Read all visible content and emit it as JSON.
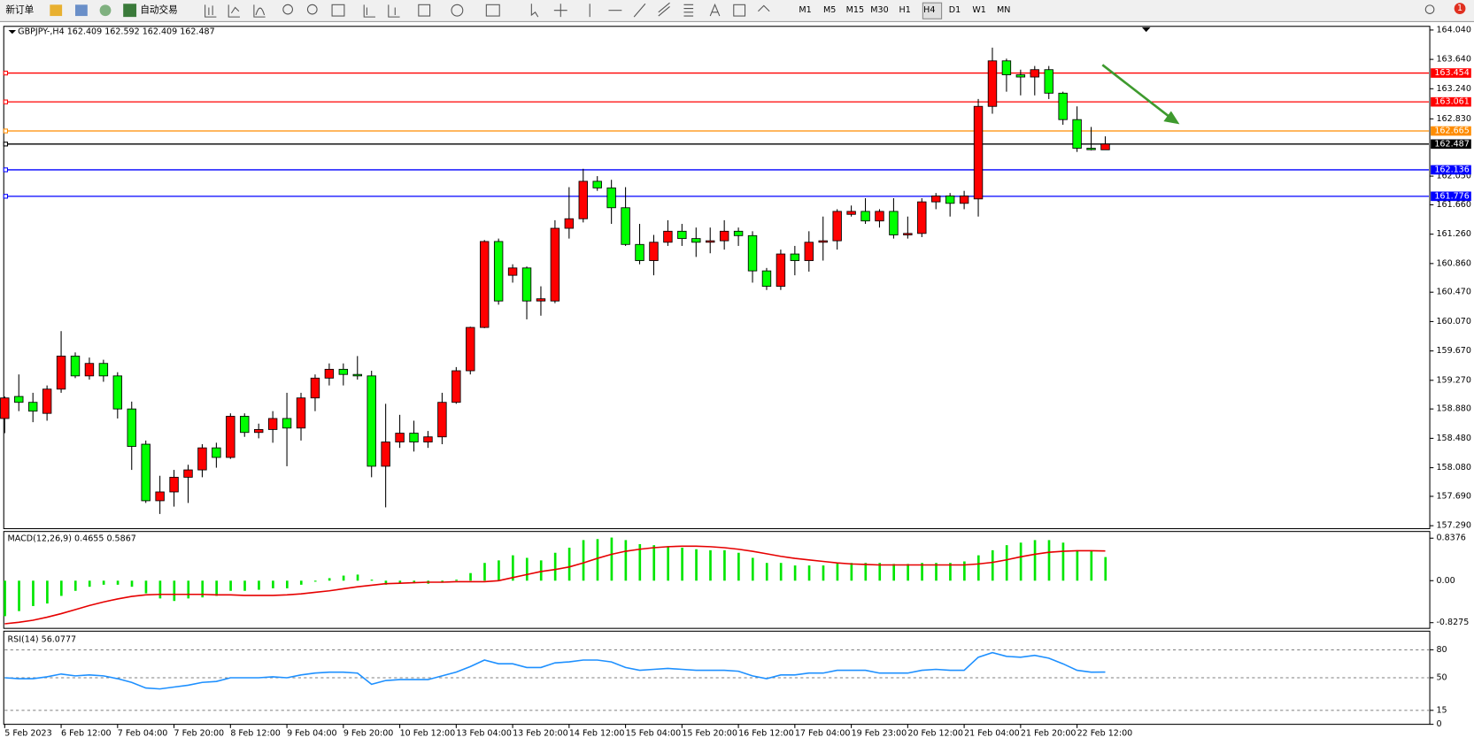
{
  "toolbar": {
    "new_order": "新订单",
    "auto_trading": "自动交易",
    "timeframes": [
      "M1",
      "M5",
      "M15",
      "M30",
      "H1",
      "H4",
      "D1",
      "W1",
      "MN"
    ],
    "notification": "1"
  },
  "chart_data": [
    {
      "type": "candlestick",
      "title": "GBPJPY-,H4  162.409 162.592 162.409 162.487",
      "categories": [
        "5 Feb 2023",
        null,
        null,
        null,
        "6 Feb 12:00",
        null,
        null,
        null,
        "7 Feb 04:00",
        null,
        null,
        null,
        "7 Feb 20:00",
        null,
        null,
        null,
        "8 Feb 12:00",
        null,
        null,
        null,
        "9 Feb 04:00",
        null,
        null,
        null,
        "9 Feb 20:00",
        null,
        null,
        null,
        "10 Feb 12:00",
        null,
        null,
        null,
        "13 Feb 04:00",
        null,
        null,
        null,
        "13 Feb 20:00",
        null,
        null,
        null,
        "14 Feb 12:00",
        null,
        null,
        null,
        "15 Feb 04:00",
        null,
        null,
        null,
        "15 Feb 20:00",
        null,
        null,
        null,
        "16 Feb 12:00",
        null,
        null,
        null,
        "17 Feb 04:00",
        null,
        null,
        null,
        "19 Feb 23:00",
        null,
        null,
        null,
        "20 Feb 12:00",
        null,
        null,
        null,
        "21 Feb 04:00",
        null,
        null,
        null,
        "21 Feb 20:00",
        null,
        null,
        null,
        "22 Feb 12:00",
        null,
        null
      ],
      "open": [
        158.75,
        159.05,
        158.97,
        158.82,
        159.15,
        159.6,
        159.33,
        159.5,
        159.33,
        158.88,
        158.4,
        157.63,
        157.75,
        157.95,
        158.05,
        158.35,
        158.22,
        158.78,
        158.56,
        158.6,
        158.75,
        158.62,
        159.03,
        159.3,
        159.42,
        159.35,
        159.33,
        158.1,
        158.43,
        158.55,
        158.43,
        158.5,
        158.97,
        159.4,
        159.99,
        161.16,
        160.7,
        160.8,
        160.35,
        160.35,
        161.34,
        161.47,
        161.98,
        161.89,
        161.62,
        161.12,
        160.9,
        161.15,
        161.3,
        161.2,
        161.15,
        161.17,
        161.3,
        161.24,
        160.76,
        160.55,
        160.99,
        160.9,
        161.15,
        161.17,
        161.53,
        161.57,
        161.44,
        161.57,
        161.25,
        161.27,
        161.7,
        161.78,
        161.68,
        161.74,
        163.0,
        163.62,
        163.43,
        163.4,
        163.5,
        163.18,
        162.82,
        162.43,
        162.409
      ],
      "high": [
        159.05,
        159.35,
        159.1,
        159.2,
        159.94,
        159.65,
        159.58,
        159.55,
        159.38,
        158.98,
        158.45,
        157.97,
        158.05,
        158.12,
        158.4,
        158.42,
        158.82,
        158.82,
        158.68,
        158.85,
        159.1,
        159.1,
        159.35,
        159.5,
        159.5,
        159.6,
        159.4,
        158.95,
        158.8,
        158.72,
        158.58,
        159.1,
        159.45,
        160.0,
        161.18,
        161.2,
        160.85,
        160.82,
        160.55,
        161.45,
        161.9,
        162.15,
        162.05,
        162.0,
        161.9,
        161.4,
        161.25,
        161.45,
        161.4,
        161.35,
        161.35,
        161.45,
        161.35,
        161.3,
        160.8,
        161.05,
        161.1,
        161.3,
        161.5,
        161.6,
        161.65,
        161.75,
        161.6,
        161.75,
        161.5,
        161.75,
        161.82,
        161.82,
        161.85,
        163.1,
        163.8,
        163.65,
        163.5,
        163.55,
        163.55,
        163.2,
        163.0,
        162.72,
        162.592
      ],
      "low": [
        158.55,
        158.85,
        158.7,
        158.72,
        159.1,
        159.3,
        159.28,
        159.25,
        158.75,
        158.05,
        157.6,
        157.45,
        157.55,
        157.6,
        157.95,
        158.08,
        158.2,
        158.5,
        158.48,
        158.42,
        158.1,
        158.45,
        158.85,
        159.2,
        159.2,
        159.28,
        157.95,
        157.54,
        158.35,
        158.3,
        158.35,
        158.4,
        158.95,
        159.35,
        159.98,
        160.3,
        160.6,
        160.1,
        160.15,
        160.32,
        161.2,
        161.42,
        161.85,
        161.4,
        161.1,
        160.85,
        160.7,
        161.1,
        161.1,
        160.95,
        161.0,
        161.05,
        161.1,
        160.6,
        160.5,
        160.5,
        160.7,
        160.75,
        160.9,
        161.05,
        161.5,
        161.4,
        161.35,
        161.2,
        161.2,
        161.22,
        161.6,
        161.5,
        161.6,
        161.5,
        162.9,
        163.2,
        163.15,
        163.15,
        163.1,
        162.75,
        162.38,
        162.4,
        162.409
      ],
      "close": [
        159.03,
        158.97,
        158.85,
        159.15,
        159.6,
        159.33,
        159.5,
        159.33,
        158.88,
        158.37,
        157.63,
        157.75,
        157.95,
        158.05,
        158.35,
        158.22,
        158.78,
        158.56,
        158.6,
        158.75,
        158.62,
        159.03,
        159.3,
        159.42,
        159.35,
        159.33,
        158.1,
        158.43,
        158.55,
        158.43,
        158.5,
        158.97,
        159.4,
        159.99,
        161.16,
        160.35,
        160.8,
        160.35,
        160.38,
        161.34,
        161.47,
        161.98,
        161.89,
        161.62,
        161.12,
        160.9,
        161.15,
        161.3,
        161.2,
        161.15,
        161.17,
        161.3,
        161.24,
        160.76,
        160.55,
        160.99,
        160.9,
        161.15,
        161.17,
        161.57,
        161.57,
        161.44,
        161.57,
        161.25,
        161.27,
        161.7,
        161.78,
        161.68,
        161.78,
        163.0,
        163.62,
        163.43,
        163.4,
        163.5,
        163.18,
        162.82,
        162.43,
        162.41,
        162.487
      ],
      "up_color": "#ff0000",
      "down_color": "#00ff00",
      "ylim": [
        157.25,
        164.09
      ],
      "yticks": [
        {
          "value": 164.04,
          "label": "164.040"
        },
        {
          "value": 163.64,
          "label": "163.640"
        },
        {
          "value": 163.24,
          "label": "163.240"
        },
        {
          "value": 162.83,
          "label": "162.830"
        },
        {
          "value": 162.05,
          "label": "162.050"
        },
        {
          "value": 161.66,
          "label": "161.660"
        },
        {
          "value": 161.26,
          "label": "161.260"
        },
        {
          "value": 160.86,
          "label": "160.860"
        },
        {
          "value": 160.47,
          "label": "160.470"
        },
        {
          "value": 160.07,
          "label": "160.070"
        },
        {
          "value": 159.67,
          "label": "159.670"
        },
        {
          "value": 159.27,
          "label": "159.270"
        },
        {
          "value": 158.88,
          "label": "158.880"
        },
        {
          "value": 158.48,
          "label": "158.480"
        },
        {
          "value": 158.08,
          "label": "158.080"
        },
        {
          "value": 157.69,
          "label": "157.690"
        },
        {
          "value": 157.29,
          "label": "157.290"
        }
      ],
      "levels": [
        {
          "value": 163.454,
          "color": "#ff0000"
        },
        {
          "value": 163.061,
          "color": "#ff0000"
        },
        {
          "value": 162.665,
          "color": "#ff8c00"
        },
        {
          "value": 162.487,
          "color": "#000000"
        },
        {
          "value": 162.136,
          "color": "#0000ff"
        },
        {
          "value": 161.776,
          "color": "#0000ff"
        }
      ]
    },
    {
      "type": "macd",
      "title": "MACD(12,26,9) 0.4655 0.5867",
      "histogram": {
        "color": "#00e600",
        "values": [
          -0.7,
          -0.6,
          -0.5,
          -0.45,
          -0.3,
          -0.2,
          -0.12,
          -0.08,
          -0.08,
          -0.12,
          -0.25,
          -0.35,
          -0.4,
          -0.35,
          -0.33,
          -0.3,
          -0.2,
          -0.2,
          -0.18,
          -0.15,
          -0.15,
          -0.08,
          -0.02,
          0.05,
          0.1,
          0.12,
          0.02,
          -0.08,
          -0.05,
          -0.05,
          -0.06,
          -0.04,
          0.02,
          0.15,
          0.35,
          0.4,
          0.5,
          0.45,
          0.4,
          0.55,
          0.65,
          0.8,
          0.82,
          0.85,
          0.8,
          0.72,
          0.7,
          0.68,
          0.65,
          0.62,
          0.6,
          0.6,
          0.55,
          0.45,
          0.35,
          0.35,
          0.3,
          0.3,
          0.3,
          0.35,
          0.35,
          0.35,
          0.35,
          0.33,
          0.33,
          0.35,
          0.35,
          0.35,
          0.38,
          0.5,
          0.6,
          0.7,
          0.75,
          0.8,
          0.8,
          0.75,
          0.6,
          0.58,
          0.4655
        ]
      },
      "signal": {
        "color": "#e60000",
        "values": [
          -0.85,
          -0.82,
          -0.78,
          -0.72,
          -0.65,
          -0.57,
          -0.49,
          -0.42,
          -0.36,
          -0.31,
          -0.28,
          -0.27,
          -0.27,
          -0.27,
          -0.27,
          -0.28,
          -0.28,
          -0.29,
          -0.29,
          -0.29,
          -0.28,
          -0.26,
          -0.23,
          -0.2,
          -0.16,
          -0.12,
          -0.09,
          -0.06,
          -0.05,
          -0.04,
          -0.03,
          -0.03,
          -0.02,
          -0.02,
          -0.02,
          0.0,
          0.06,
          0.12,
          0.18,
          0.22,
          0.27,
          0.35,
          0.44,
          0.52,
          0.58,
          0.62,
          0.65,
          0.67,
          0.68,
          0.68,
          0.67,
          0.65,
          0.62,
          0.58,
          0.53,
          0.48,
          0.44,
          0.41,
          0.38,
          0.35,
          0.33,
          0.32,
          0.31,
          0.31,
          0.31,
          0.31,
          0.31,
          0.31,
          0.31,
          0.33,
          0.36,
          0.41,
          0.47,
          0.52,
          0.56,
          0.58,
          0.59,
          0.59,
          0.5867
        ]
      },
      "ylim": [
        -0.94,
        0.97
      ],
      "yticks": [
        0.8376,
        {
          "value": 0,
          "label": "0.00"
        },
        -0.8275
      ]
    },
    {
      "type": "line",
      "title": "RSI(14) 56.0777",
      "color": "#1e90ff",
      "values": [
        50,
        49,
        49,
        51,
        54,
        52,
        53,
        52,
        49,
        45,
        39,
        38,
        40,
        42,
        45,
        46,
        50,
        50,
        50,
        51,
        50,
        53,
        55,
        56,
        56,
        55,
        43,
        47,
        48,
        48,
        48,
        52,
        56,
        62,
        69,
        65,
        65,
        61,
        61,
        66,
        67,
        69,
        69,
        67,
        61,
        58,
        59,
        60,
        59,
        58,
        58,
        58,
        57,
        52,
        49,
        53,
        53,
        55,
        55,
        58,
        58,
        58,
        55,
        55,
        55,
        58,
        59,
        58,
        58,
        72,
        77,
        73,
        72,
        74,
        71,
        65,
        58,
        56,
        56.0777
      ],
      "ylim": [
        0,
        100
      ],
      "yticks": [
        80,
        50,
        15,
        0
      ],
      "grid": true
    }
  ]
}
